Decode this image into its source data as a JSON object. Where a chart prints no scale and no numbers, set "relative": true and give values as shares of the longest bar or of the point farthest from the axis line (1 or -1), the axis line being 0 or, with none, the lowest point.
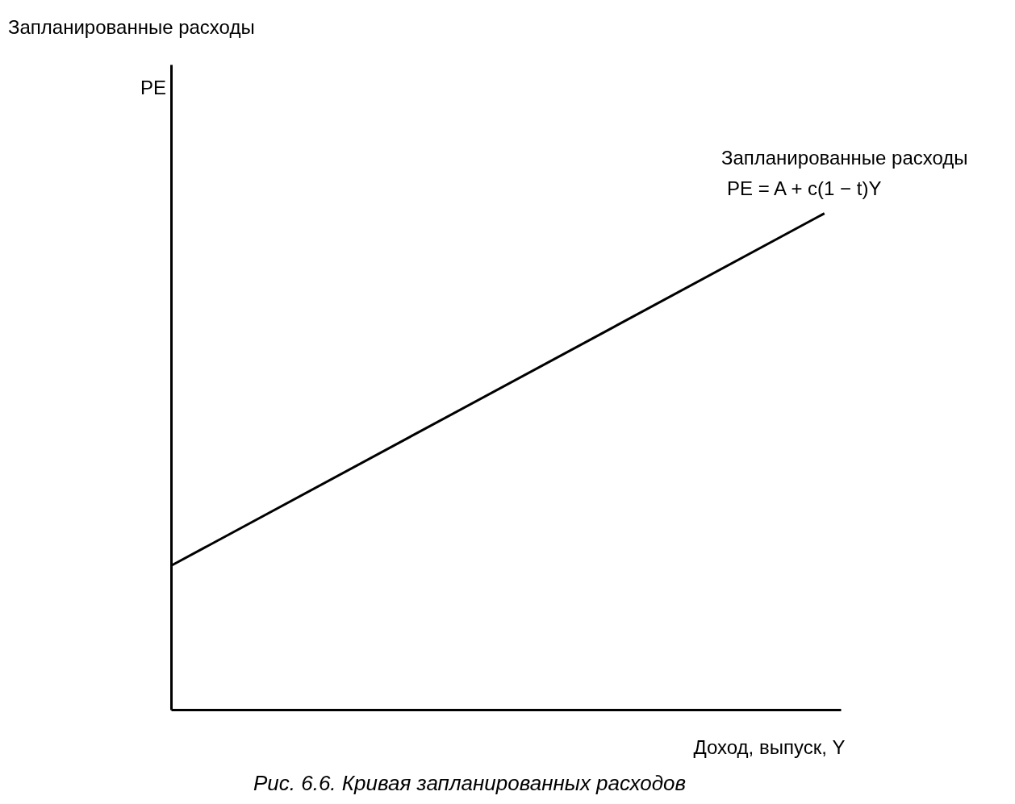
{
  "chart_data": {
    "type": "line",
    "relative": true,
    "xlabel": "Доход, выпуск, Y",
    "categories": [
      null,
      null
    ],
    "series": [
      {
        "name": "Запланированные расходы",
        "color": "#000000",
        "values": [
          0.29,
          1
        ]
      }
    ],
    "annotations": [
      "Запланированные расходы",
      "PE = A + c(1 − t)Y",
      "Рис. 6.6. Кривая запланированных расходов",
      "PE"
    ],
    "grid": false,
    "legend": false,
    "marker": "none",
    "line_style": "solid"
  }
}
